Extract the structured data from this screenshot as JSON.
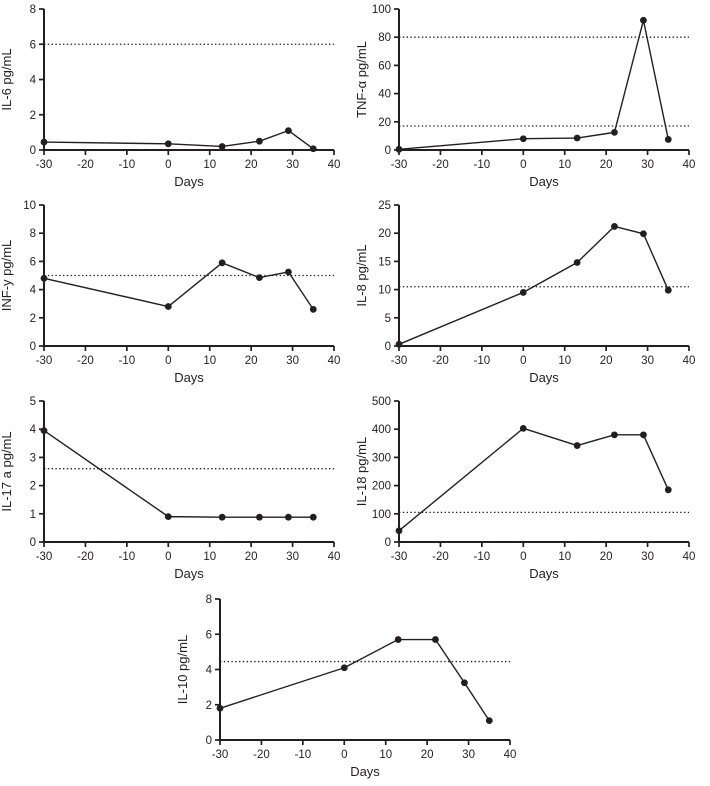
{
  "figure": {
    "background": "#ffffff",
    "ink_color": "#231f20",
    "marker": "filled-circle",
    "reference_line_style": "dotted"
  },
  "chart_data": [
    {
      "id": "il-6",
      "type": "line",
      "ylabel": "IL-6 pg/mL",
      "xlabel": "Days",
      "x": [
        -30,
        0,
        13,
        22,
        29,
        35
      ],
      "y": [
        0.45,
        0.35,
        0.2,
        0.5,
        1.1,
        0.07
      ],
      "xlim": [
        -30,
        40
      ],
      "ylim": [
        0,
        8
      ],
      "xticks": [
        -30,
        -20,
        -10,
        0,
        10,
        20,
        30,
        40
      ],
      "yticks": [
        0,
        2,
        4,
        6,
        8
      ],
      "reference_lines": [
        6
      ]
    },
    {
      "id": "tnf-alpha",
      "type": "line",
      "ylabel": "TNF-α pg/mL",
      "xlabel": "Days",
      "x": [
        -30,
        0,
        13,
        22,
        29,
        35
      ],
      "y": [
        0.5,
        8,
        8.5,
        12.5,
        92,
        7.5
      ],
      "xlim": [
        -30,
        40
      ],
      "ylim": [
        0,
        100
      ],
      "xticks": [
        -30,
        -20,
        -10,
        0,
        10,
        20,
        30,
        40
      ],
      "yticks": [
        0,
        20,
        40,
        60,
        80,
        100
      ],
      "reference_lines": [
        80,
        17
      ]
    },
    {
      "id": "inf-y",
      "type": "line",
      "ylabel": "INF-y pg/mL",
      "xlabel": "Days",
      "x": [
        -30,
        0,
        13,
        22,
        29,
        35
      ],
      "y": [
        4.8,
        2.8,
        5.9,
        4.85,
        5.25,
        2.6
      ],
      "xlim": [
        -30,
        40
      ],
      "ylim": [
        0,
        10
      ],
      "xticks": [
        -30,
        -20,
        -10,
        0,
        10,
        20,
        30,
        40
      ],
      "yticks": [
        0,
        2,
        4,
        6,
        8,
        10
      ],
      "reference_lines": [
        5
      ]
    },
    {
      "id": "il-8",
      "type": "line",
      "ylabel": "IL-8 pg/mL",
      "xlabel": "Days",
      "x": [
        -30,
        0,
        13,
        22,
        29,
        35
      ],
      "y": [
        0.3,
        9.5,
        14.8,
        21.2,
        19.9,
        9.9
      ],
      "xlim": [
        -30,
        40
      ],
      "ylim": [
        0,
        25
      ],
      "xticks": [
        -30,
        -20,
        -10,
        0,
        10,
        20,
        30,
        40
      ],
      "yticks": [
        0,
        5,
        10,
        15,
        20,
        25
      ],
      "reference_lines": [
        10.5
      ]
    },
    {
      "id": "il-17a",
      "type": "line",
      "ylabel": "IL-17 a pg/mL",
      "xlabel": "Days",
      "x": [
        -30,
        0,
        13,
        22,
        29,
        35
      ],
      "y": [
        3.95,
        0.9,
        0.88,
        0.88,
        0.88,
        0.88
      ],
      "xlim": [
        -30,
        40
      ],
      "ylim": [
        0,
        5
      ],
      "xticks": [
        -30,
        -20,
        -10,
        0,
        10,
        20,
        30,
        40
      ],
      "yticks": [
        0,
        1,
        2,
        3,
        4,
        5
      ],
      "reference_lines": [
        2.6
      ]
    },
    {
      "id": "il-18",
      "type": "line",
      "ylabel": "IL-18 pg/mL",
      "xlabel": "Days",
      "x": [
        -30,
        0,
        13,
        22,
        29,
        35
      ],
      "y": [
        40,
        403,
        342,
        380,
        380,
        185
      ],
      "xlim": [
        -30,
        40
      ],
      "ylim": [
        0,
        500
      ],
      "xticks": [
        -30,
        -20,
        -10,
        0,
        10,
        20,
        30,
        40
      ],
      "yticks": [
        0,
        100,
        200,
        300,
        400,
        500
      ],
      "reference_lines": [
        105
      ]
    },
    {
      "id": "il-10",
      "type": "line",
      "ylabel": "IL-10 pg/mL",
      "xlabel": "Days",
      "x": [
        -30,
        0,
        13,
        22,
        29,
        35
      ],
      "y": [
        1.8,
        4.1,
        5.7,
        5.7,
        3.25,
        1.1
      ],
      "xlim": [
        -30,
        40
      ],
      "ylim": [
        0,
        8
      ],
      "xticks": [
        -30,
        -20,
        -10,
        0,
        10,
        20,
        30,
        40
      ],
      "yticks": [
        0,
        2,
        4,
        6,
        8
      ],
      "reference_lines": [
        4.45
      ]
    }
  ]
}
